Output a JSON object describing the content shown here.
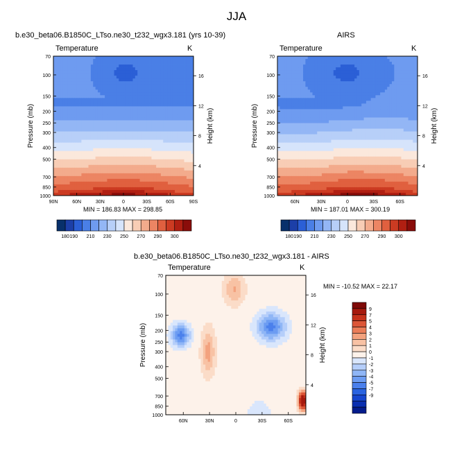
{
  "main_title": "JJA",
  "panels": [
    {
      "title": "b.e30_beta06.B1850C_LTso.ne30_t232_wgx3.181 (yrs 10-39)",
      "left_label": "Temperature",
      "right_label": "K",
      "minmax": "MIN = 186.83  MAX = 298.85"
    },
    {
      "title": "AIRS",
      "left_label": "Temperature",
      "right_label": "K",
      "minmax": "MIN = 187.01  MAX = 300.19"
    },
    {
      "title": "b.e30_beta06.B1850C_LTso.ne30_t232_wgx3.181 - AIRS",
      "left_label": "Temperature",
      "right_label": "K",
      "minmax": "MIN = -10.52  MAX =  22.17"
    }
  ],
  "axes": {
    "ylabel": "Pressure (mb)",
    "y2label": "Height (km)",
    "pressure_ticks": [
      "70",
      "100",
      "150",
      "200",
      "250",
      "300",
      "400",
      "500",
      "700",
      "850",
      "1000"
    ],
    "height_ticks": [
      "16",
      "12",
      "8",
      "4"
    ],
    "lat_ticks_full": [
      "90N",
      "60N",
      "30N",
      "0",
      "30S",
      "60S",
      "90S"
    ],
    "lat_ticks_short": [
      "60N",
      "30N",
      "0",
      "30S",
      "60S"
    ]
  },
  "colors": {
    "abs_scale": [
      "#08306b",
      "#1c3fa8",
      "#2b5fd6",
      "#4a7fe6",
      "#6e9bf0",
      "#93b6f5",
      "#b7cff8",
      "#d6e4fb",
      "#fbe8dc",
      "#f8cdb5",
      "#f3ab8c",
      "#ec8563",
      "#e0603f",
      "#cc3b22",
      "#b01f12",
      "#8a0d0a"
    ],
    "diff_scale": [
      "#041c8c",
      "#0a2fb0",
      "#1646cf",
      "#2a63e0",
      "#4b80ec",
      "#6c9cf2",
      "#8fb6f6",
      "#b5cefa",
      "#d9e6fc",
      "#fdf2ea",
      "#fbdcc8",
      "#f8c2a4",
      "#f3a27e",
      "#ea7d58",
      "#dc5637",
      "#c5321b",
      "#a61a0e",
      "#7f0a08"
    ]
  },
  "chart_data": [
    {
      "type": "heatmap",
      "title": "b.e30_beta06.B1850C_LTso.ne30_t232_wgx3.181 (yrs 10-39)",
      "ylabel": "Pressure (mb)",
      "y2label": "Height (km)",
      "colorbar_ticks": [
        "180",
        "190",
        "210",
        "230",
        "250",
        "270",
        "290",
        "300"
      ],
      "min": 186.83,
      "max": 298.85
    },
    {
      "type": "heatmap",
      "title": "AIRS",
      "ylabel": "Pressure (mb)",
      "y2label": "Height (km)",
      "colorbar_ticks": [
        "180",
        "190",
        "210",
        "230",
        "250",
        "270",
        "290",
        "300"
      ],
      "min": 187.01,
      "max": 300.19
    },
    {
      "type": "heatmap",
      "title": "b.e30_beta06.B1850C_LTso.ne30_t232_wgx3.181 - AIRS",
      "ylabel": "Pressure (mb)",
      "y2label": "Height (km)",
      "colorbar_ticks": [
        "9",
        "7",
        "5",
        "4",
        "3",
        "2",
        "1",
        "0",
        "-1",
        "-2",
        "-3",
        "-4",
        "-5",
        "-7",
        "-9"
      ],
      "min": -10.52,
      "max": 22.17
    }
  ]
}
